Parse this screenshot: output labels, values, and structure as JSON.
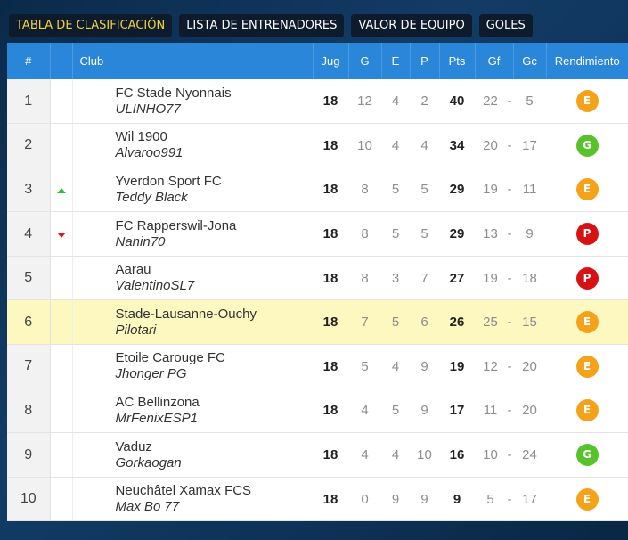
{
  "tabs": [
    {
      "label": "TABLA DE CLASIFICACIÓN",
      "active": true
    },
    {
      "label": "LISTA DE ENTRENADORES",
      "active": false
    },
    {
      "label": "VALOR DE EQUIPO",
      "active": false
    },
    {
      "label": "GOLES",
      "active": false
    }
  ],
  "columns": {
    "pos": "#",
    "club": "Club",
    "jug": "Jug",
    "g": "G",
    "e": "E",
    "p": "P",
    "pts": "Pts",
    "gf": "Gf",
    "gc": "Gc",
    "rendimiento": "Rendimiento"
  },
  "badge_colors": {
    "E": "#f3a21a",
    "G": "#58c22a",
    "P": "#d61212"
  },
  "rows": [
    {
      "pos": "1",
      "trend": "",
      "team": "FC Stade Nyonnais",
      "manager": "ULINHO77",
      "jug": "18",
      "g": "12",
      "e": "4",
      "p": "2",
      "pts": "40",
      "gf": "22",
      "sep": "-",
      "gc": "5",
      "badge": "E",
      "highlight": false
    },
    {
      "pos": "2",
      "trend": "",
      "team": "Wil 1900",
      "manager": "Alvaroo991",
      "jug": "18",
      "g": "10",
      "e": "4",
      "p": "4",
      "pts": "34",
      "gf": "20",
      "sep": "-",
      "gc": "17",
      "badge": "G",
      "highlight": false
    },
    {
      "pos": "3",
      "trend": "up",
      "team": "Yverdon Sport FC",
      "manager": "Teddy Black",
      "jug": "18",
      "g": "8",
      "e": "5",
      "p": "5",
      "pts": "29",
      "gf": "19",
      "sep": "-",
      "gc": "11",
      "badge": "E",
      "highlight": false
    },
    {
      "pos": "4",
      "trend": "down",
      "team": "FC Rapperswil-Jona",
      "manager": "Nanin70",
      "jug": "18",
      "g": "8",
      "e": "5",
      "p": "5",
      "pts": "29",
      "gf": "13",
      "sep": "-",
      "gc": "9",
      "badge": "P",
      "highlight": false
    },
    {
      "pos": "5",
      "trend": "",
      "team": "Aarau",
      "manager": "ValentinoSL7",
      "jug": "18",
      "g": "8",
      "e": "3",
      "p": "7",
      "pts": "27",
      "gf": "19",
      "sep": "-",
      "gc": "18",
      "badge": "P",
      "highlight": false
    },
    {
      "pos": "6",
      "trend": "",
      "team": "Stade-Lausanne-Ouchy",
      "manager": "Pilotari",
      "jug": "18",
      "g": "7",
      "e": "5",
      "p": "6",
      "pts": "26",
      "gf": "25",
      "sep": "-",
      "gc": "15",
      "badge": "E",
      "highlight": true
    },
    {
      "pos": "7",
      "trend": "",
      "team": "Etoile Carouge FC",
      "manager": "Jhonger PG",
      "jug": "18",
      "g": "5",
      "e": "4",
      "p": "9",
      "pts": "19",
      "gf": "12",
      "sep": "-",
      "gc": "20",
      "badge": "E",
      "highlight": false
    },
    {
      "pos": "8",
      "trend": "",
      "team": "AC Bellinzona",
      "manager": "MrFenixESP1",
      "jug": "18",
      "g": "4",
      "e": "5",
      "p": "9",
      "pts": "17",
      "gf": "11",
      "sep": "-",
      "gc": "20",
      "badge": "E",
      "highlight": false
    },
    {
      "pos": "9",
      "trend": "",
      "team": "Vaduz",
      "manager": "Gorkaogan",
      "jug": "18",
      "g": "4",
      "e": "4",
      "p": "10",
      "pts": "16",
      "gf": "10",
      "sep": "-",
      "gc": "24",
      "badge": "G",
      "highlight": false
    },
    {
      "pos": "10",
      "trend": "",
      "team": "Neuchâtel Xamax FCS",
      "manager": "Max Bo 77",
      "jug": "18",
      "g": "0",
      "e": "9",
      "p": "9",
      "pts": "9",
      "gf": "5",
      "sep": "-",
      "gc": "17",
      "badge": "E",
      "highlight": false
    }
  ]
}
